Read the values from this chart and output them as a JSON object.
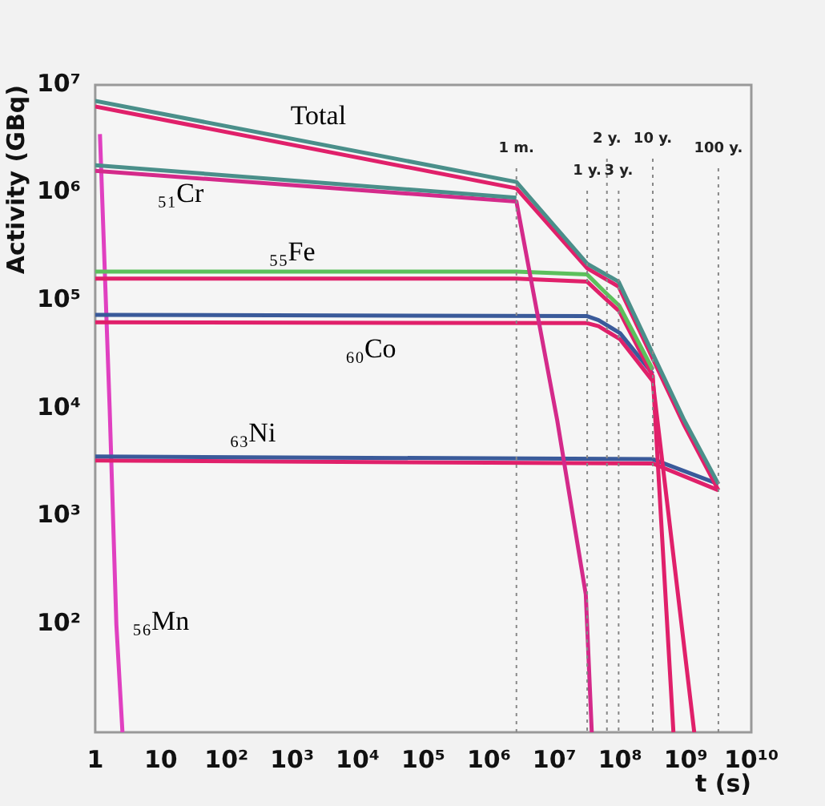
{
  "chart_data": {
    "type": "line",
    "xlabel": "t (s)",
    "ylabel": "Activity (GBq)",
    "log": "xy",
    "grid": false,
    "legend": false,
    "marker": "none",
    "line_style": "solid",
    "xlim": [
      1,
      10000000000
    ],
    "ylim": [
      10,
      10000000
    ],
    "xticks": [
      1,
      10,
      {
        "value": 100,
        "label": "10²"
      },
      {
        "value": 1000,
        "label": "10³"
      },
      {
        "value": 10000,
        "label": "10⁴"
      },
      {
        "value": 100000,
        "label": "10⁵"
      },
      {
        "value": 1000000,
        "label": "10⁶"
      },
      {
        "value": 10000000,
        "label": "10⁷"
      },
      {
        "value": 100000000,
        "label": "10⁸"
      },
      {
        "value": 1000000000,
        "label": "10⁹"
      },
      {
        "value": 10000000000,
        "label": "10¹⁰"
      }
    ],
    "yticks": [
      {
        "value": 100,
        "label": "10²"
      },
      {
        "value": 1000,
        "label": "10³"
      },
      {
        "value": 10000,
        "label": "10⁴"
      },
      {
        "value": 100000,
        "label": "10⁵"
      },
      {
        "value": 1000000,
        "label": "10⁶"
      },
      {
        "value": 10000000,
        "label": "10⁷"
      }
    ],
    "series": [
      {
        "color": "#4a8f8a",
        "x": [
          1,
          2630000,
          31500000,
          95000000,
          950000000,
          3150000000
        ],
        "values": [
          7100000,
          1260000,
          220000,
          150000,
          7800,
          2000
        ]
      },
      {
        "color": "#e0206a",
        "x": [
          1,
          2630000,
          31500000,
          95000000,
          950000000,
          3150000000
        ],
        "values": [
          6300000,
          1100000,
          200000,
          135000,
          7000,
          1750
        ]
      },
      {
        "color": "#4a8f8a",
        "x": [
          1,
          2630000
        ],
        "values": [
          1800000,
          900000
        ]
      },
      {
        "color": "#d42a8a",
        "x": [
          1,
          2630000,
          11000000,
          30000000,
          37000000
        ],
        "values": [
          1600000,
          830000,
          7800,
          190,
          10
        ]
      },
      {
        "color": "#5cc05c",
        "x": [
          1,
          2630000,
          31500000,
          59000000,
          97000000,
          315000000
        ],
        "values": [
          186000,
          186000,
          175000,
          120000,
          90000,
          23000
        ]
      },
      {
        "color": "#e0206a",
        "x": [
          1,
          2630000,
          31500000,
          59000000,
          97000000,
          315000000,
          650000000
        ],
        "values": [
          160000,
          160000,
          150000,
          105000,
          80000,
          20000,
          10
        ]
      },
      {
        "color": "#3a5a9a",
        "x": [
          1,
          31500000,
          47000000,
          100000000,
          315000000
        ],
        "values": [
          74000,
          72000,
          66000,
          50000,
          21000
        ]
      },
      {
        "color": "#e0206a",
        "x": [
          1,
          31500000,
          47000000,
          100000000,
          315000000,
          1350000000
        ],
        "values": [
          63000,
          62000,
          58000,
          44000,
          18000,
          10
        ]
      },
      {
        "color": "#3a5a9a",
        "x": [
          1,
          315000000,
          3150000000
        ],
        "values": [
          3600,
          3400,
          2000
        ]
      },
      {
        "color": "#e0206a",
        "x": [
          1,
          315000000,
          3150000000
        ],
        "values": [
          3300,
          3100,
          1750
        ]
      },
      {
        "color": "#e040c0",
        "x": [
          1.18,
          1.66,
          2.1,
          2.6
        ],
        "values": [
          3500000,
          10000,
          100,
          10
        ]
      }
    ],
    "ref_lines": [
      {
        "axis": "x",
        "value": 2630000,
        "label": "1 m.",
        "color": "#888888",
        "line_style": "dotted"
      },
      {
        "axis": "x",
        "value": 31500000,
        "label": "1 y.",
        "color": "#888888",
        "line_style": "dotted"
      },
      {
        "axis": "x",
        "value": 63000000,
        "label": "2 y.",
        "color": "#888888",
        "line_style": "dotted"
      },
      {
        "axis": "x",
        "value": 95000000,
        "label": "3 y.",
        "color": "#888888",
        "line_style": "dotted"
      },
      {
        "axis": "x",
        "value": 315000000,
        "label": "10 y.",
        "color": "#888888",
        "line_style": "dotted"
      },
      {
        "axis": "x",
        "value": 3150000000,
        "label": "100 y.",
        "color": "#888888",
        "line_style": "dotted"
      }
    ],
    "annotations": [
      "Total",
      "₅₁Cr",
      "₅₅Fe",
      "₆₀Co",
      "₆₃Ni",
      "₅₆Mn"
    ]
  }
}
